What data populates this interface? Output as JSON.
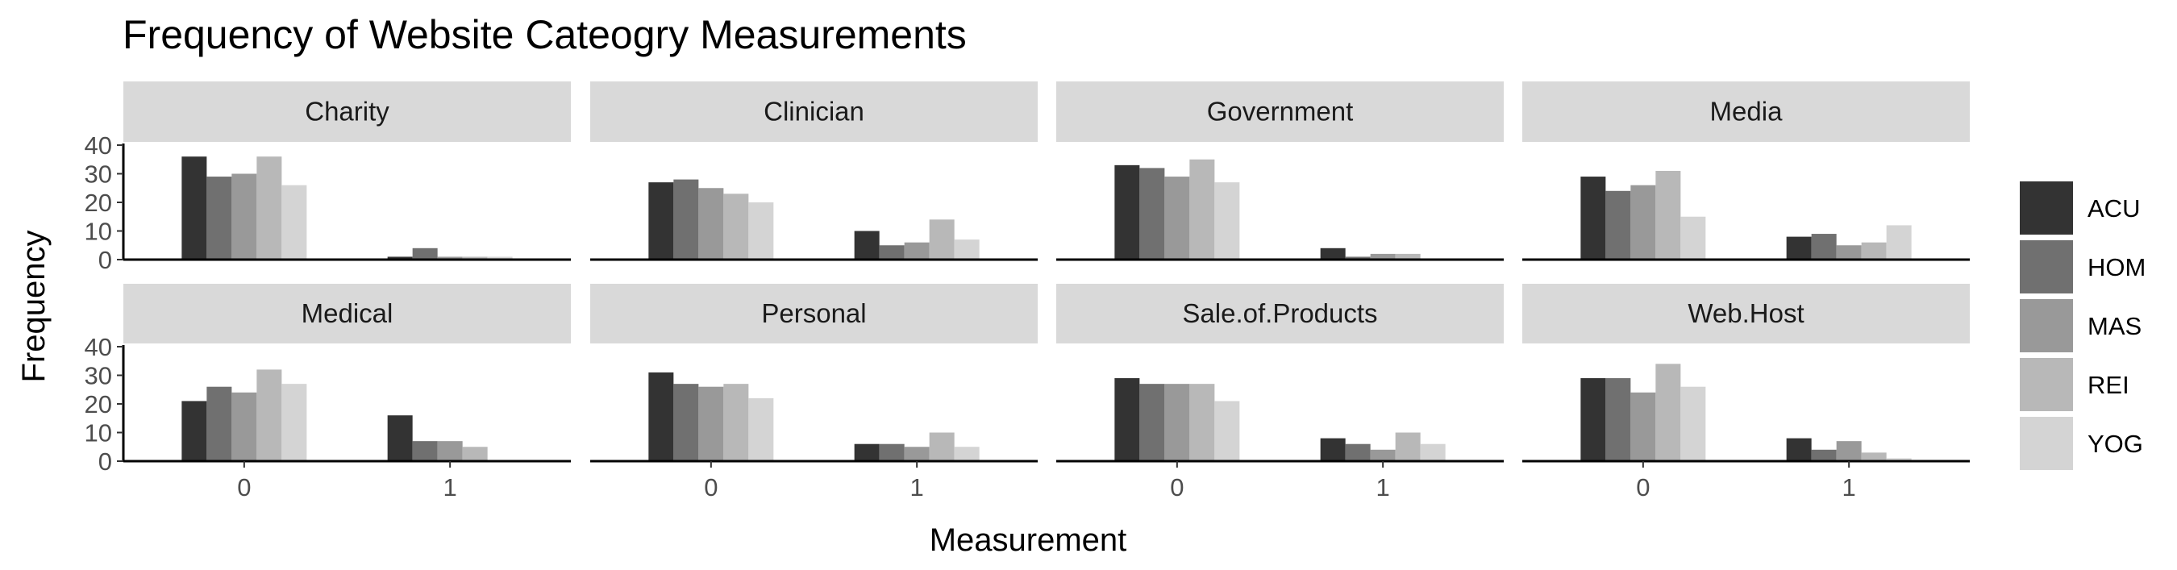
{
  "chart_data": {
    "type": "bar",
    "title": "Frequency of Website Cateogry Measurements",
    "xlabel": "Measurement",
    "ylabel": "Frequency",
    "categories": [
      "0",
      "1"
    ],
    "ylim": [
      0,
      40
    ],
    "yticks": [
      0,
      10,
      20,
      30,
      40
    ],
    "grid": false,
    "legend_position": "right",
    "legend": [
      {
        "name": "ACU",
        "color": "#333333"
      },
      {
        "name": "HOM",
        "color": "#707070"
      },
      {
        "name": "MAS",
        "color": "#999999"
      },
      {
        "name": "REI",
        "color": "#b8b8b8"
      },
      {
        "name": "YOG",
        "color": "#d4d4d4"
      }
    ],
    "panels": [
      {
        "name": "Charity",
        "values": {
          "0": [
            36,
            29,
            30,
            36,
            26
          ],
          "1": [
            1,
            4,
            1,
            1,
            1
          ]
        }
      },
      {
        "name": "Clinician",
        "values": {
          "0": [
            27,
            28,
            25,
            23,
            20
          ],
          "1": [
            10,
            5,
            6,
            14,
            7
          ]
        }
      },
      {
        "name": "Government",
        "values": {
          "0": [
            33,
            32,
            29,
            35,
            27
          ],
          "1": [
            4,
            1,
            2,
            2,
            0
          ]
        }
      },
      {
        "name": "Media",
        "values": {
          "0": [
            29,
            24,
            26,
            31,
            15
          ],
          "1": [
            8,
            9,
            5,
            6,
            12
          ]
        }
      },
      {
        "name": "Medical",
        "values": {
          "0": [
            21,
            26,
            24,
            32,
            27
          ],
          "1": [
            16,
            7,
            7,
            5,
            0
          ]
        }
      },
      {
        "name": "Personal",
        "values": {
          "0": [
            31,
            27,
            26,
            27,
            22
          ],
          "1": [
            6,
            6,
            5,
            10,
            5
          ]
        }
      },
      {
        "name": "Sale.of.Products",
        "values": {
          "0": [
            29,
            27,
            27,
            27,
            21
          ],
          "1": [
            8,
            6,
            4,
            10,
            6
          ]
        }
      },
      {
        "name": "Web.Host",
        "values": {
          "0": [
            29,
            29,
            24,
            34,
            26
          ],
          "1": [
            8,
            4,
            7,
            3,
            1
          ]
        }
      }
    ]
  }
}
